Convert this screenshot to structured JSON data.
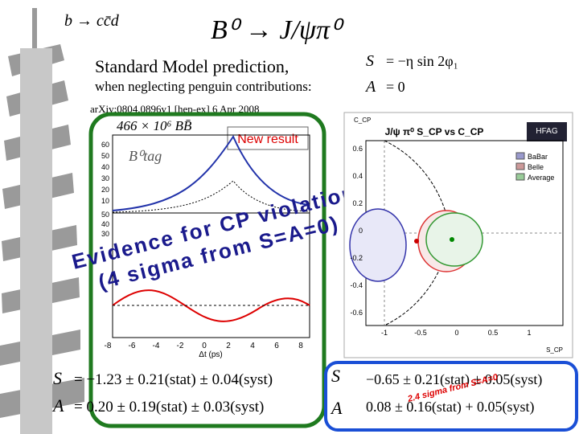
{
  "header": {
    "decay_mode": "b → cc̄d",
    "channel": "B⁰ → J/ψπ⁰"
  },
  "prediction": {
    "title": "Standard Model prediction,",
    "subtitle": "when neglecting penguin contributions:",
    "s_label": "S",
    "s_formula": "=   −η sin 2φ₁",
    "a_label": "A",
    "a_formula": "=   0"
  },
  "belle": {
    "reference": "arXiv:0804.0896v1 [hep-ex] 6 Apr 2008",
    "sample": "466 × 10⁶ BB̄",
    "badge": "New result",
    "tag": "B⁰tag",
    "yticks_top": [
      "60",
      "50",
      "40",
      "30",
      "20",
      "10"
    ],
    "yticks_bottom": [
      "50",
      "40",
      "30"
    ],
    "xticks": [
      "-8",
      "-6",
      "-4",
      "-2",
      "0",
      "2",
      "4",
      "6",
      "8"
    ],
    "xlabel": "Δt (ps)",
    "s_label": "S",
    "s_result": "=   −1.23 ± 0.21(stat) ± 0.04(syst)",
    "a_label": "A",
    "a_result": "=   0.20 ± 0.19(stat) ± 0.03(syst)"
  },
  "annotation": {
    "line1": "Evidence for CP violation !!",
    "line2": "(4 sigma from S=A=0)"
  },
  "average": {
    "title": "J/ψ π⁰ S_CP vs C_CP",
    "logo": "HFAG",
    "legend": [
      "BaBar",
      "Belle",
      "Average"
    ],
    "ylabel": "C_CP",
    "xlabel": "S_CP",
    "yticks": [
      "0.6",
      "0.4",
      "0.2",
      "0",
      "-0.2",
      "-0.4",
      "-0.6"
    ],
    "xticks": [
      "-1",
      "-0.5",
      "0",
      "0.5",
      "1"
    ],
    "s_label": "S",
    "s_result": "−0.65 ± 0.21(stat) ± 0.05(syst)",
    "a_label": "A",
    "a_result": "0.08 ± 0.16(stat) + 0.05(syst)",
    "note": "2.4 sigma from S=A=0"
  }
}
